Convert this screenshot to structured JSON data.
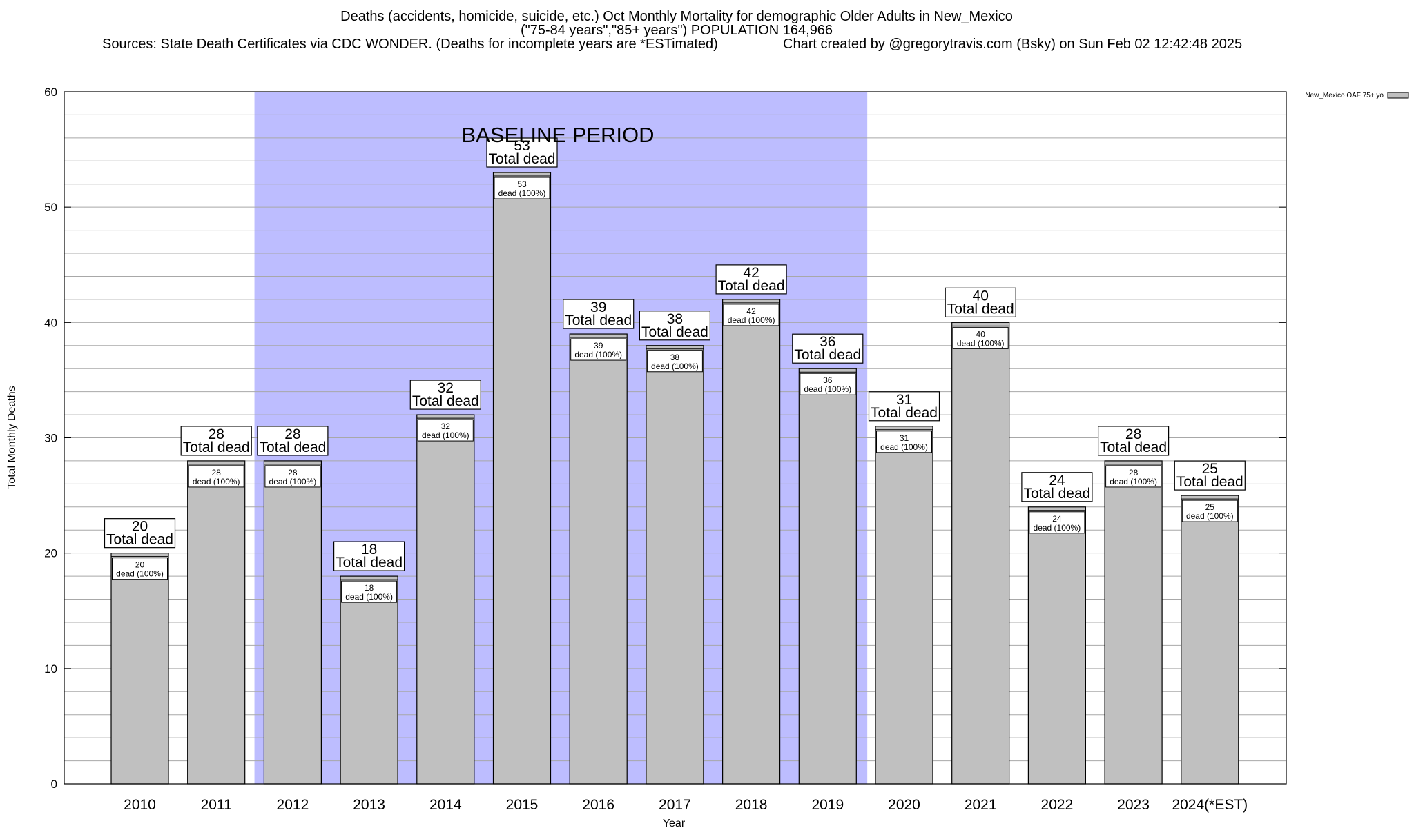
{
  "header": {
    "title": "Deaths (accidents, homicide, suicide, etc.) Oct Monthly Mortality for demographic Older Adults in New_Mexico",
    "subtitle": "(\"75-84 years\",\"85+ years\") POPULATION 164,966",
    "sources": "Sources: State Death Certificates via CDC WONDER. (Deaths for incomplete years are *ESTimated)",
    "credit": "Chart created by @gregorytravis.com (Bsky) on Sun Feb 02 12:42:48 2025"
  },
  "chart_data": {
    "type": "bar",
    "title": "Deaths (accidents, homicide, suicide, etc.) Oct Monthly Mortality for demographic Older Adults in New_Mexico",
    "xlabel": "Year",
    "ylabel": "Total Monthly Deaths",
    "ylim": [
      0,
      60
    ],
    "yticks": [
      0,
      10,
      20,
      30,
      40,
      50,
      60
    ],
    "grid": true,
    "legend_position": "top-right",
    "categories": [
      "2010",
      "2011",
      "2012",
      "2013",
      "2014",
      "2015",
      "2016",
      "2017",
      "2018",
      "2019",
      "2020",
      "2021",
      "2022",
      "2023",
      "2024(*EST)"
    ],
    "series": [
      {
        "name": "New_Mexico OAF 75+ yo",
        "color": "#c0c0c0",
        "values": [
          20,
          28,
          28,
          18,
          32,
          53,
          39,
          38,
          42,
          36,
          31,
          40,
          24,
          28,
          25
        ]
      }
    ],
    "top_label_suffix": "Total dead",
    "inner_label_suffix": "dead (100%)",
    "baseline_period": {
      "label": "BASELINE PERIOD",
      "from": "2012",
      "to": "2019",
      "color": "#bdbdff"
    }
  }
}
